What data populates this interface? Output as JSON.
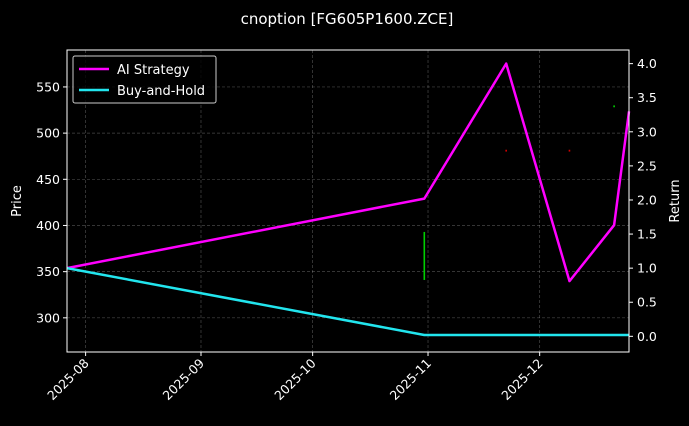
{
  "chart_data": {
    "type": "line",
    "title": "cnoption [FG605P1600.ZCE]",
    "xlabel": "",
    "ylabel": "Price",
    "ylabel_right": "Return",
    "x_range": [
      "2025-07-27",
      "2025-12-25"
    ],
    "ylim": [
      263,
      590
    ],
    "ylim_right": [
      -0.23,
      4.2
    ],
    "x_ticks": [
      "2025-08",
      "2025-09",
      "2025-10",
      "2025-11",
      "2025-12"
    ],
    "y_ticks": [
      300,
      350,
      400,
      450,
      500,
      550
    ],
    "y_ticks_right": [
      0.0,
      0.5,
      1.0,
      1.5,
      2.0,
      2.5,
      3.0,
      3.5,
      4.0
    ],
    "grid": true,
    "legend_position": "top-left",
    "series": [
      {
        "name": "AI Strategy",
        "axis": "right",
        "color": "#ff00ff",
        "points": [
          {
            "x": "2025-07-27",
            "y": 1.0
          },
          {
            "x": "2025-10-31",
            "y": 2.02
          },
          {
            "x": "2025-11-22",
            "y": 4.0
          },
          {
            "x": "2025-12-09",
            "y": 0.81
          },
          {
            "x": "2025-12-21",
            "y": 1.63
          },
          {
            "x": "2025-12-25",
            "y": 3.3
          }
        ]
      },
      {
        "name": "Buy-and-Hold",
        "axis": "right",
        "color": "#22e5ee",
        "points": [
          {
            "x": "2025-07-27",
            "y": 1.0
          },
          {
            "x": "2025-10-31",
            "y": 0.02
          },
          {
            "x": "2025-12-25",
            "y": 0.02
          }
        ]
      }
    ],
    "price_marks": [
      {
        "x": "2025-10-31",
        "low": 341,
        "high": 393,
        "color": "#00d000"
      },
      {
        "x": "2025-11-22",
        "low": 480,
        "high": 482,
        "color": "#d00000"
      },
      {
        "x": "2025-12-09",
        "low": 480,
        "high": 482,
        "color": "#d00000"
      },
      {
        "x": "2025-12-21",
        "low": 528,
        "high": 530,
        "color": "#00d000"
      }
    ]
  }
}
